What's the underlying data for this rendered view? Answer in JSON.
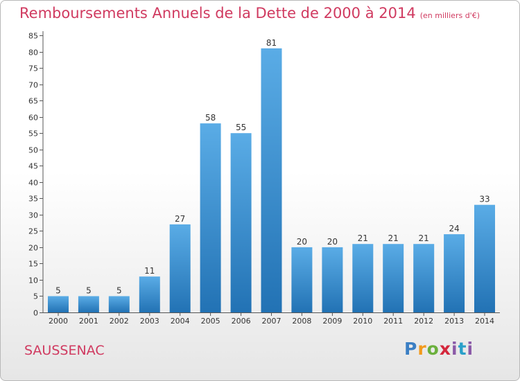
{
  "header": {
    "title": "Remboursements Annuels de la Dette de 2000 à 2014",
    "unit": "(en milliers d'€)"
  },
  "footer": {
    "commune": "SAUSSENAC",
    "logo": "Proxiti"
  },
  "colors": {
    "accent": "#d03a60",
    "bar_top": "#5aace6",
    "bar_bottom": "#2272b4"
  },
  "chart_data": {
    "type": "bar",
    "title": "Remboursements Annuels de la Dette de 2000 à 2014",
    "subtitle": "(en milliers d'€)",
    "xlabel": "",
    "ylabel": "",
    "categories": [
      "2000",
      "2001",
      "2002",
      "2003",
      "2004",
      "2005",
      "2006",
      "2007",
      "2008",
      "2009",
      "2010",
      "2011",
      "2012",
      "2013",
      "2014"
    ],
    "values": [
      5,
      5,
      5,
      11,
      27,
      58,
      55,
      81,
      20,
      20,
      21,
      21,
      21,
      24,
      33
    ],
    "ylim": [
      0,
      85
    ],
    "ytick_step": 5,
    "grid": false,
    "legend": "none"
  }
}
